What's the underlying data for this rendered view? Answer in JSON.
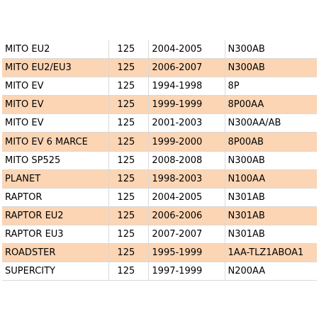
{
  "table": {
    "rows": [
      {
        "model": "MITO EU2",
        "cc": "125",
        "years": "2004-2005",
        "code": "N300AB"
      },
      {
        "model": "MITO EU2/EU3",
        "cc": "125",
        "years": "2006-2007",
        "code": "N300AB"
      },
      {
        "model": "MITO EV",
        "cc": "125",
        "years": "1994-1998",
        "code": "8P"
      },
      {
        "model": "MITO EV",
        "cc": "125",
        "years": "1999-1999",
        "code": "8P00AA"
      },
      {
        "model": "MITO EV",
        "cc": "125",
        "years": "2001-2003",
        "code": "N300AA/AB"
      },
      {
        "model": "MITO EV 6 MARCE",
        "cc": "125",
        "years": "1999-2000",
        "code": "8P00AB"
      },
      {
        "model": "MITO SP525",
        "cc": "125",
        "years": "2008-2008",
        "code": "N300AB"
      },
      {
        "model": "PLANET",
        "cc": "125",
        "years": "1998-2003",
        "code": "N100AA"
      },
      {
        "model": "RAPTOR",
        "cc": "125",
        "years": "2004-2005",
        "code": "N301AB"
      },
      {
        "model": "RAPTOR EU2",
        "cc": "125",
        "years": "2006-2006",
        "code": "N301AB"
      },
      {
        "model": "RAPTOR EU3",
        "cc": "125",
        "years": "2007-2007",
        "code": "N301AB"
      },
      {
        "model": "ROADSTER",
        "cc": "125",
        "years": "1995-1999",
        "code": "1AA-TLZ1ABOA1"
      },
      {
        "model": "SUPERCITY",
        "cc": "125",
        "years": "1997-1999",
        "code": "N200AA"
      }
    ],
    "colors": {
      "stripe": "#fcd5b4",
      "background": "#ffffff",
      "gridline": "#d9d9d9"
    }
  }
}
